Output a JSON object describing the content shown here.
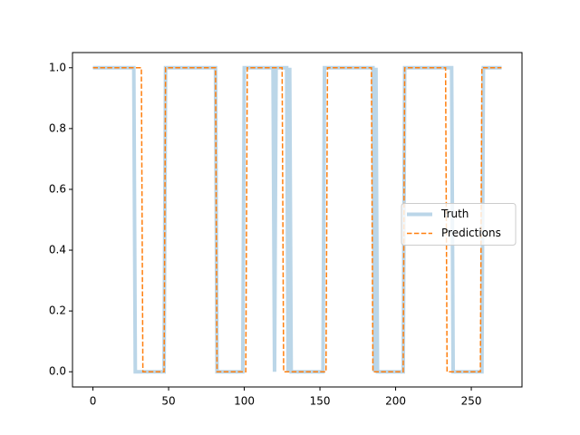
{
  "chart_data": {
    "type": "line",
    "series": [
      {
        "name": "Truth",
        "color": "#1f77b4",
        "x": [
          0,
          27,
          28,
          47,
          48,
          81,
          82,
          99,
          100,
          119,
          120,
          121,
          128,
          129,
          130,
          131,
          152,
          153,
          185,
          186,
          187,
          188,
          205,
          206,
          237,
          238,
          257,
          258,
          270
        ],
        "values": [
          1,
          1,
          0,
          0,
          1,
          1,
          0,
          0,
          1,
          1,
          0,
          1,
          1,
          0,
          1,
          0,
          0,
          1,
          1,
          0,
          1,
          0,
          0,
          1,
          1,
          0,
          0,
          1,
          1
        ]
      },
      {
        "name": "Predictions",
        "color": "#ff7f0e",
        "x": [
          0,
          32,
          33,
          47,
          48,
          81,
          82,
          101,
          102,
          125,
          126,
          154,
          155,
          184,
          185,
          205,
          206,
          233,
          234,
          256,
          257,
          270
        ],
        "values": [
          1,
          1,
          0,
          0,
          1,
          1,
          0,
          0,
          1,
          1,
          0,
          0,
          1,
          1,
          0,
          0,
          1,
          1,
          0,
          0,
          1,
          1
        ]
      }
    ],
    "xlim": [
      -13.5,
      283.5
    ],
    "ylim": [
      -0.05,
      1.05
    ],
    "xticks": [
      0,
      50,
      100,
      150,
      200,
      250
    ],
    "yticks": [
      {
        "value": 0,
        "label": "0.0"
      },
      {
        "value": 0.2,
        "label": "0.2"
      },
      {
        "value": 0.4,
        "label": "0.4"
      },
      {
        "value": 0.6,
        "label": "0.6"
      },
      {
        "value": 0.8,
        "label": "0.8"
      },
      {
        "value": 1,
        "label": "1.0"
      }
    ],
    "legend": "center right",
    "grid": false
  }
}
